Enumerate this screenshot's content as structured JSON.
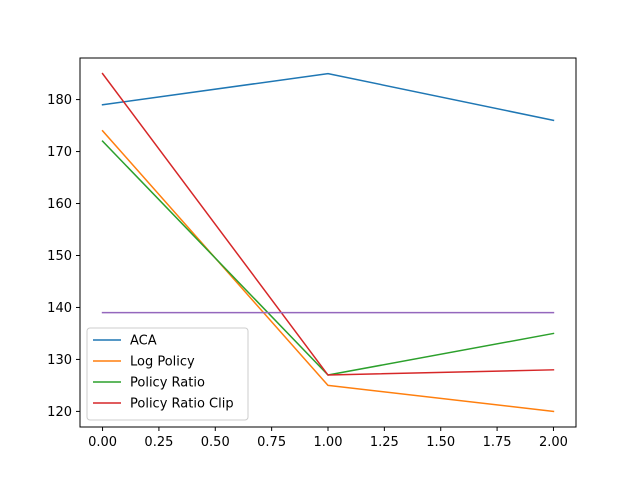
{
  "chart_data": {
    "type": "line",
    "x": [
      0,
      1,
      2
    ],
    "xlim": [
      -0.1,
      2.1
    ],
    "ylim": [
      117,
      188
    ],
    "xticks": [
      0.0,
      0.25,
      0.5,
      0.75,
      1.0,
      1.25,
      1.5,
      1.75,
      2.0
    ],
    "xtick_labels": [
      "0.00",
      "0.25",
      "0.50",
      "0.75",
      "1.00",
      "1.25",
      "1.50",
      "1.75",
      "2.00"
    ],
    "yticks": [
      120,
      130,
      140,
      150,
      160,
      170,
      180
    ],
    "ytick_labels": [
      "120",
      "130",
      "140",
      "150",
      "160",
      "170",
      "180"
    ],
    "grid": false,
    "legend_position": "lower-left",
    "series": [
      {
        "name": "ACA",
        "color": "#1f77b4",
        "values": [
          179,
          185,
          176
        ]
      },
      {
        "name": "Log Policy",
        "color": "#ff7f0e",
        "values": [
          174,
          125,
          120
        ]
      },
      {
        "name": "Policy Ratio",
        "color": "#2ca02c",
        "values": [
          172,
          127,
          135
        ]
      },
      {
        "name": "Policy Ratio Clip",
        "color": "#d62728",
        "values": [
          185,
          127,
          128
        ]
      },
      {
        "name": "",
        "color": "#9467bd",
        "values": [
          139,
          139,
          139
        ]
      }
    ]
  }
}
